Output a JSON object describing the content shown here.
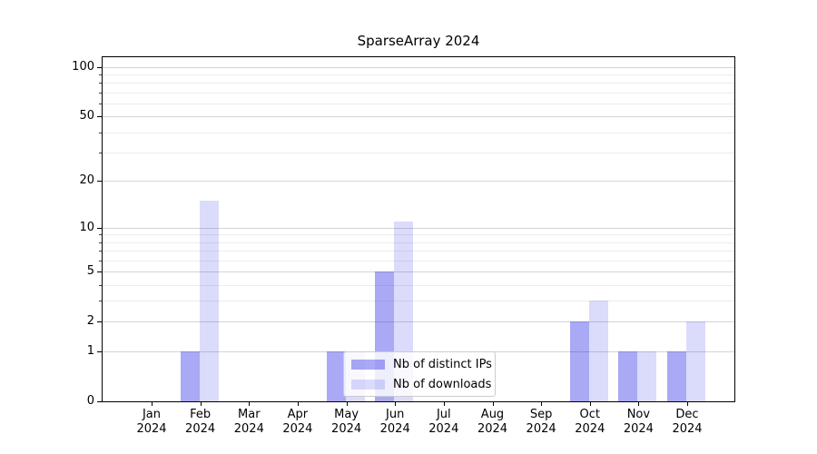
{
  "title": "SparseArray 2024",
  "chart_data": {
    "type": "bar",
    "title": "SparseArray 2024",
    "xlabel": "",
    "ylabel": "",
    "categories": [
      "Jan 2024",
      "Feb 2024",
      "Mar 2024",
      "Apr 2024",
      "May 2024",
      "Jun 2024",
      "Jul 2024",
      "Aug 2024",
      "Sep 2024",
      "Oct 2024",
      "Nov 2024",
      "Dec 2024"
    ],
    "series": [
      {
        "name": "Nb of distinct IPs",
        "color": "#a9a9f5",
        "fill": "rgba(30,30,230,0.38)",
        "values": [
          0,
          1,
          0,
          0,
          1,
          5,
          0,
          0,
          0,
          2,
          1,
          1
        ]
      },
      {
        "name": "Nb of downloads",
        "color": "#dcdcf9",
        "fill": "rgba(30,30,230,0.16)",
        "values": [
          0,
          15,
          0,
          0,
          1,
          11,
          0,
          0,
          0,
          3,
          1,
          2
        ]
      }
    ],
    "yscale": "log1p",
    "ylim": [
      0,
      114.6
    ],
    "yticks": [
      0,
      1,
      2,
      5,
      10,
      20,
      50,
      100
    ],
    "yminorticks": [
      3,
      4,
      6,
      7,
      8,
      9,
      30,
      40,
      60,
      70,
      80,
      90
    ],
    "grid": {
      "major_color": "#d4d4d4",
      "minor_color": "#ececec"
    },
    "legend": {
      "position": "inside lower center",
      "frame_color": "#cccccc",
      "background": "rgba(255,255,255,0.8)",
      "entries": [
        "Nb of distinct IPs",
        "Nb of downloads"
      ]
    }
  }
}
